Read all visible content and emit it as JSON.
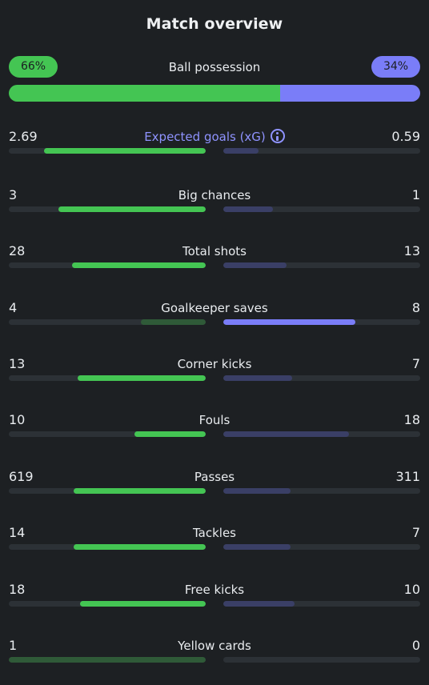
{
  "title": "Match overview",
  "colors": {
    "home_strong": "#44c553",
    "home_weak": "#2f5a38",
    "away_strong": "#7a7df8",
    "away_weak": "#3a3f66",
    "track": "#2c3136"
  },
  "possession": {
    "label": "Ball possession",
    "home_value": "66%",
    "away_value": "34%",
    "home_fraction": 0.66,
    "away_fraction": 0.34
  },
  "stats": [
    {
      "label": "Expected goals (xG)",
      "home": "2.69",
      "away": "0.59",
      "home_fill": 0.82,
      "away_fill": 0.18,
      "leader": "home",
      "info_icon": "info-icon",
      "highlight": true
    },
    {
      "label": "Big chances",
      "home": "3",
      "away": "1",
      "home_fill": 0.75,
      "away_fill": 0.25,
      "leader": "home"
    },
    {
      "label": "Total shots",
      "home": "28",
      "away": "13",
      "home_fill": 0.68,
      "away_fill": 0.32,
      "leader": "home"
    },
    {
      "label": "Goalkeeper saves",
      "home": "4",
      "away": "8",
      "home_fill": 0.33,
      "away_fill": 0.67,
      "leader": "away"
    },
    {
      "label": "Corner kicks",
      "home": "13",
      "away": "7",
      "home_fill": 0.65,
      "away_fill": 0.35,
      "leader": "home"
    },
    {
      "label": "Fouls",
      "home": "10",
      "away": "18",
      "home_fill": 0.36,
      "away_fill": 0.64,
      "leader": "home"
    },
    {
      "label": "Passes",
      "home": "619",
      "away": "311",
      "home_fill": 0.67,
      "away_fill": 0.34,
      "leader": "home"
    },
    {
      "label": "Tackles",
      "home": "14",
      "away": "7",
      "home_fill": 0.67,
      "away_fill": 0.34,
      "leader": "home"
    },
    {
      "label": "Free kicks",
      "home": "18",
      "away": "10",
      "home_fill": 0.64,
      "away_fill": 0.36,
      "leader": "home"
    },
    {
      "label": "Yellow cards",
      "home": "1",
      "away": "0",
      "home_fill": 1.0,
      "away_fill": 0.0,
      "leader": "home_weak"
    }
  ]
}
